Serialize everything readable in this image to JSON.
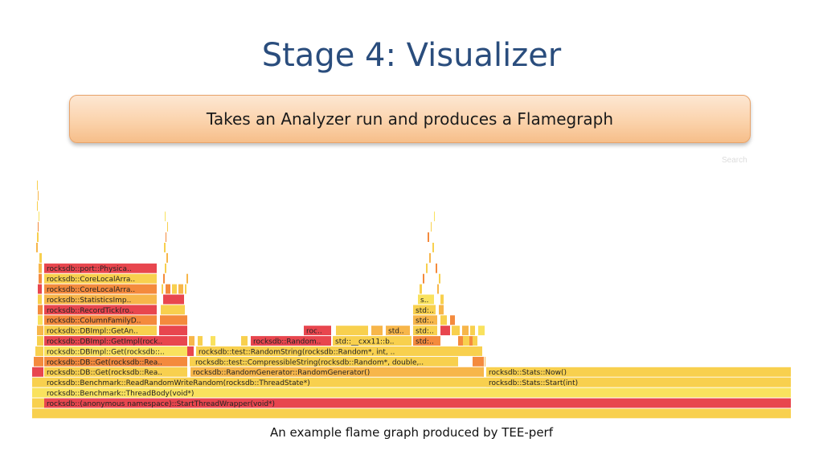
{
  "slide": {
    "title": "Stage 4: Visualizer",
    "banner_text": "Takes an Analyzer run and produces a Flamegraph",
    "caption": "An example flame graph produced by TEE-perf"
  },
  "flamegraph": {
    "search_label": "Search",
    "palette": {
      "red": "#e8464e",
      "orange": "#f48a3d",
      "light_orange": "#f7b64a",
      "yellow": "#f8d04e",
      "pale_yellow": "#f9e25e"
    },
    "frames": [
      {
        "label": "rocksdb::(anonymous namespace)::StartThreadWrapper(void*)"
      },
      {
        "label": "rocksdb::Benchmark::ThreadBody(void*)"
      },
      {
        "label": "rocksdb::Benchmark::ReadRandomWriteRandom(rocksdb::ThreadState*)"
      },
      {
        "label": "rocksdb::Stats::Start(int)"
      },
      {
        "label": "rocksdb::DB::Get(rocksdb::Rea.."
      },
      {
        "label": "rocksdb::RandomGenerator::RandomGenerator()"
      },
      {
        "label": "rocksdb::Stats::Now()"
      },
      {
        "label": "rocksdb::DB::Get(rocksdb::Rea.."
      },
      {
        "label": "rocksdb::test::CompressibleString(rocksdb::Random*, double,.."
      },
      {
        "label": "rocksdb::DBImpl::Get(rocksdb::.."
      },
      {
        "label": "rocksdb::test::RandomString(rocksdb::Random*, int, .."
      },
      {
        "label": "rocksdb::DBImpl::GetImpl(rock.."
      },
      {
        "label": "rocksdb::Random.."
      },
      {
        "label": "std::__cxx11::b.."
      },
      {
        "label": "std:.."
      },
      {
        "label": "rocksdb::DBImpl::GetAn.."
      },
      {
        "label": "roc.."
      },
      {
        "label": "std.."
      },
      {
        "label": "std:.."
      },
      {
        "label": "rocksdb::ColumnFamilyD.."
      },
      {
        "label": "std:.."
      },
      {
        "label": "rocksdb::RecordTick(ro.."
      },
      {
        "label": "std:.."
      },
      {
        "label": "rocksdb::StatisticsImp.."
      },
      {
        "label": "s.."
      },
      {
        "label": "rocksdb::CoreLocalArra.."
      },
      {
        "label": "rocksdb::CoreLocalArra.."
      },
      {
        "label": "rocksdb::port::Physica.."
      }
    ]
  }
}
